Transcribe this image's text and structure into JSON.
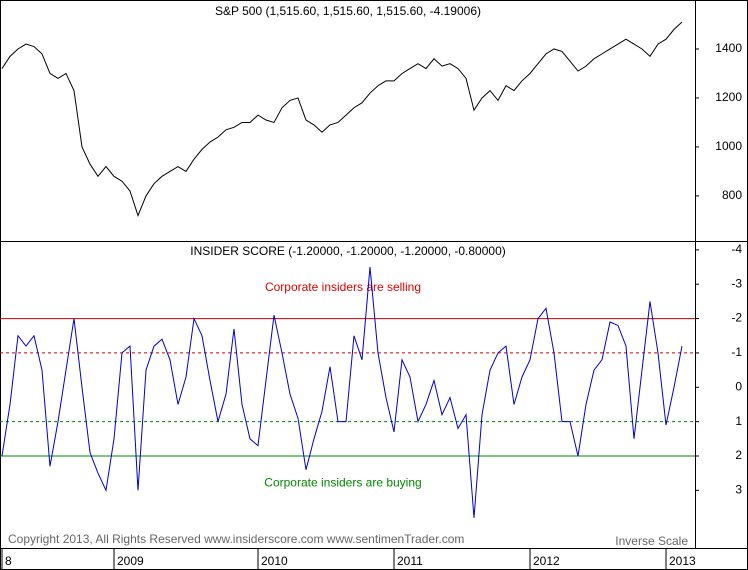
{
  "chart_data": [
    {
      "type": "line",
      "title": "S&P 500 (1,515.60, 1,515.60, 1,515.60, -4.19006)",
      "color": "#000000",
      "ylim": [
        620,
        1600
      ],
      "yticks": [
        800,
        1000,
        1200,
        1400
      ],
      "values": [
        1320,
        1370,
        1400,
        1420,
        1410,
        1380,
        1300,
        1280,
        1300,
        1230,
        1000,
        930,
        880,
        920,
        880,
        860,
        820,
        720,
        800,
        850,
        880,
        900,
        920,
        900,
        950,
        990,
        1020,
        1040,
        1070,
        1080,
        1100,
        1100,
        1130,
        1110,
        1100,
        1160,
        1190,
        1200,
        1110,
        1090,
        1060,
        1090,
        1100,
        1130,
        1160,
        1180,
        1220,
        1250,
        1270,
        1270,
        1300,
        1320,
        1340,
        1320,
        1360,
        1330,
        1340,
        1320,
        1280,
        1150,
        1200,
        1230,
        1190,
        1250,
        1230,
        1270,
        1300,
        1340,
        1380,
        1400,
        1390,
        1350,
        1310,
        1330,
        1360,
        1380,
        1400,
        1420,
        1440,
        1420,
        1400,
        1370,
        1420,
        1440,
        1480,
        1510
      ]
    },
    {
      "type": "line",
      "title": "INSIDER SCORE (-1.20000, -1.20000, -1.20000, -0.80000)",
      "color": "#0000cc",
      "inverse": true,
      "ylim": [
        -4.2,
        4.3
      ],
      "yticks": [
        -4,
        -3,
        -2,
        -1,
        0,
        1,
        2,
        3
      ],
      "reference_lines": [
        {
          "value": -2,
          "color": "#cc0000",
          "dashed": false
        },
        {
          "value": -1,
          "color": "#cc0000",
          "dashed": true
        },
        {
          "value": 1,
          "color": "#008800",
          "dashed": true
        },
        {
          "value": 2,
          "color": "#008800",
          "dashed": false
        }
      ],
      "annotations": [
        {
          "text": "Corporate insiders are selling",
          "color": "#dd0000",
          "value": -2.9
        },
        {
          "text": "Corporate insiders are buying",
          "color": "#008800",
          "value": 2.8
        }
      ],
      "footer": "Copyright 2013, All Rights Reserved  www.insiderscore.com  www.sentimenTrader.com",
      "scale_note": "Inverse Scale",
      "categories": [
        "8",
        null,
        null,
        null,
        null,
        null,
        null,
        null,
        null,
        null,
        null,
        null,
        null,
        null,
        "2009",
        null,
        null,
        null,
        null,
        null,
        null,
        null,
        null,
        null,
        null,
        null,
        null,
        null,
        null,
        null,
        null,
        null,
        "2010",
        null,
        null,
        null,
        null,
        null,
        null,
        null,
        null,
        null,
        null,
        null,
        null,
        null,
        null,
        null,
        null,
        "2011",
        null,
        null,
        null,
        null,
        null,
        null,
        null,
        null,
        null,
        null,
        null,
        null,
        null,
        null,
        null,
        null,
        "2012",
        null,
        null,
        null,
        null,
        null,
        null,
        null,
        null,
        null,
        null,
        null,
        null,
        null,
        null,
        null,
        null,
        "2013",
        null,
        null
      ],
      "values": [
        2.0,
        0.5,
        -1.5,
        -1.2,
        -1.5,
        -0.5,
        2.3,
        1.0,
        -0.5,
        -2.0,
        0,
        1.9,
        2.5,
        3.0,
        1.5,
        -1.0,
        -1.2,
        3.0,
        -0.5,
        -1.2,
        -1.4,
        -0.8,
        0.5,
        -0.3,
        -2.0,
        -1.5,
        -0.2,
        1.0,
        0.2,
        -1.7,
        0.5,
        1.5,
        1.7,
        -0.2,
        -2.1,
        -1.0,
        0.2,
        0.9,
        2.4,
        1.5,
        0.7,
        -0.6,
        1.0,
        1.0,
        -1.5,
        -0.8,
        -3.5,
        -1.0,
        0.3,
        1.3,
        -0.8,
        -0.3,
        1.0,
        0.5,
        -0.2,
        0.8,
        0.3,
        1.2,
        0.8,
        3.8,
        0.8,
        -0.5,
        -1.0,
        -1.2,
        0.5,
        -0.3,
        -0.8,
        -2.0,
        -2.3,
        -1.0,
        1.0,
        1.0,
        2.0,
        0.5,
        -0.5,
        -0.8,
        -1.9,
        -1.8,
        -1.2,
        1.5,
        -0.5,
        -2.5,
        -1.0,
        1.1,
        0.0,
        -1.2
      ]
    }
  ]
}
